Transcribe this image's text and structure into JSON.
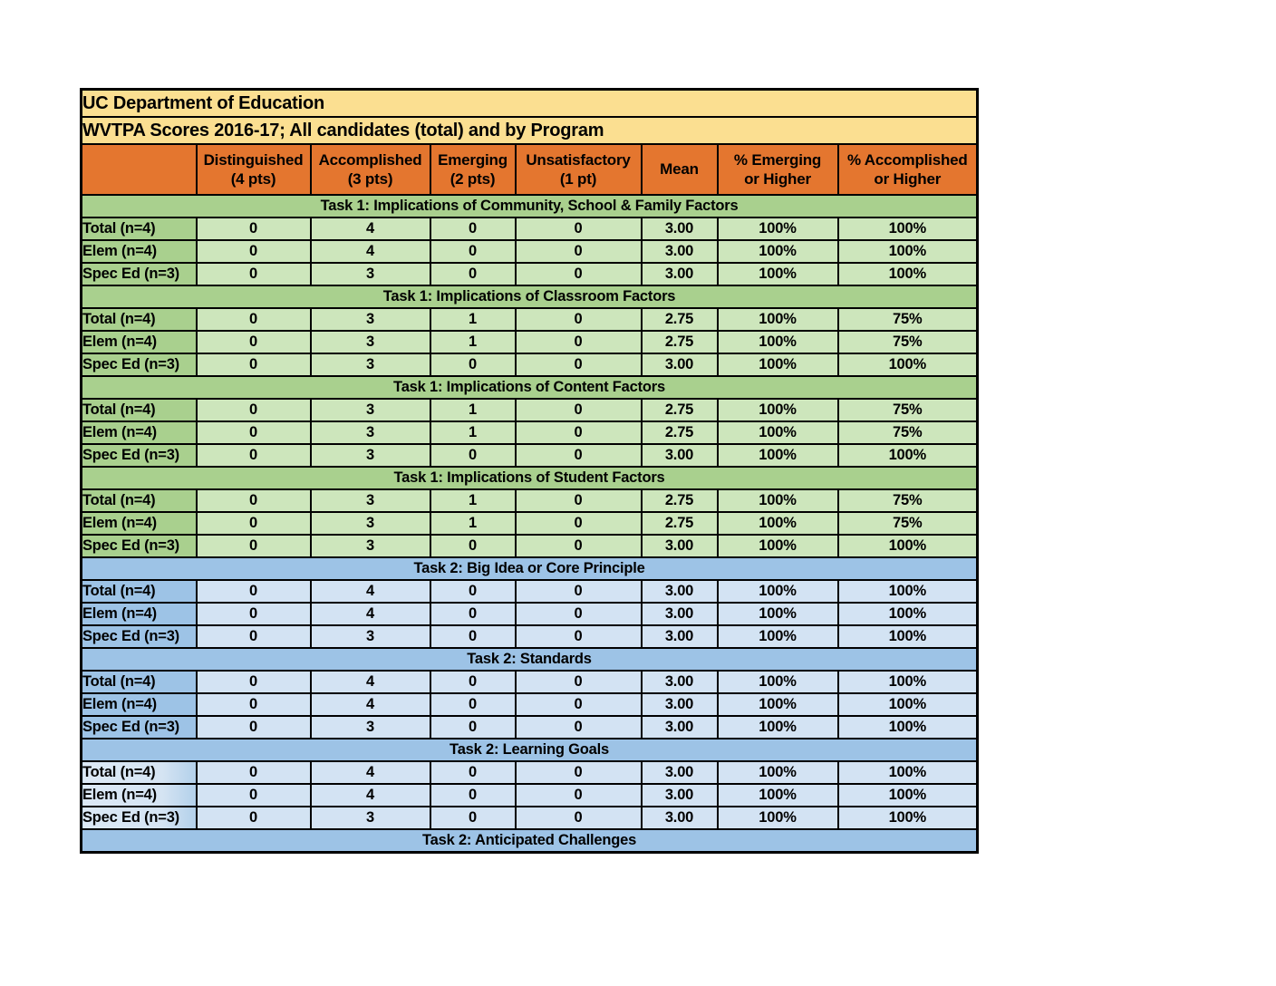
{
  "table": {
    "title_rows": [
      "UC Department of Education",
      "WVTPA Scores 2016-17; All candidates (total) and by Program"
    ],
    "columns": [
      {
        "label": ""
      },
      {
        "label": "Distinguished\n(4 pts)"
      },
      {
        "label": "Accomplished\n(3 pts)"
      },
      {
        "label": "Emerging\n(2 pts)"
      },
      {
        "label": "Unsatisfactory\n(1 pt)"
      },
      {
        "label": "Mean"
      },
      {
        "label": "% Emerging\nor Higher"
      },
      {
        "label": "% Accomplished\nor Higher"
      }
    ],
    "sections": [
      {
        "title": "Task 1: Implications of Community, School & Family Factors",
        "task": "task1",
        "rows": [
          {
            "label": "Total (n=4)",
            "values": [
              "0",
              "4",
              "0",
              "0",
              "3.00",
              "100%",
              "100%"
            ]
          },
          {
            "label": "Elem (n=4)",
            "values": [
              "0",
              "4",
              "0",
              "0",
              "3.00",
              "100%",
              "100%"
            ]
          },
          {
            "label": "Spec Ed (n=3)",
            "values": [
              "0",
              "3",
              "0",
              "0",
              "3.00",
              "100%",
              "100%"
            ]
          }
        ]
      },
      {
        "title": "Task 1: Implications of Classroom Factors",
        "task": "task1",
        "rows": [
          {
            "label": "Total (n=4)",
            "values": [
              "0",
              "3",
              "1",
              "0",
              "2.75",
              "100%",
              "75%"
            ]
          },
          {
            "label": "Elem (n=4)",
            "values": [
              "0",
              "3",
              "1",
              "0",
              "2.75",
              "100%",
              "75%"
            ]
          },
          {
            "label": "Spec Ed (n=3)",
            "values": [
              "0",
              "3",
              "0",
              "0",
              "3.00",
              "100%",
              "100%"
            ]
          }
        ]
      },
      {
        "title": "Task 1: Implications of Content Factors",
        "task": "task1",
        "rows": [
          {
            "label": "Total (n=4)",
            "values": [
              "0",
              "3",
              "1",
              "0",
              "2.75",
              "100%",
              "75%"
            ]
          },
          {
            "label": "Elem (n=4)",
            "values": [
              "0",
              "3",
              "1",
              "0",
              "2.75",
              "100%",
              "75%"
            ]
          },
          {
            "label": "Spec Ed (n=3)",
            "values": [
              "0",
              "3",
              "0",
              "0",
              "3.00",
              "100%",
              "100%"
            ]
          }
        ]
      },
      {
        "title": "Task 1: Implications of Student Factors",
        "task": "task1",
        "rows": [
          {
            "label": "Total (n=4)",
            "values": [
              "0",
              "3",
              "1",
              "0",
              "2.75",
              "100%",
              "75%"
            ]
          },
          {
            "label": "Elem (n=4)",
            "values": [
              "0",
              "3",
              "1",
              "0",
              "2.75",
              "100%",
              "75%"
            ]
          },
          {
            "label": "Spec Ed (n=3)",
            "values": [
              "0",
              "3",
              "0",
              "0",
              "3.00",
              "100%",
              "100%"
            ]
          }
        ]
      },
      {
        "title": "Task 2: Big Idea or Core Principle",
        "task": "task2",
        "rows": [
          {
            "label": "Total (n=4)",
            "values": [
              "0",
              "4",
              "0",
              "0",
              "3.00",
              "100%",
              "100%"
            ]
          },
          {
            "label": "Elem (n=4)",
            "values": [
              "0",
              "4",
              "0",
              "0",
              "3.00",
              "100%",
              "100%"
            ]
          },
          {
            "label": "Spec Ed (n=3)",
            "values": [
              "0",
              "3",
              "0",
              "0",
              "3.00",
              "100%",
              "100%"
            ]
          }
        ]
      },
      {
        "title": "Task 2: Standards",
        "task": "task2",
        "rows": [
          {
            "label": "Total (n=4)",
            "values": [
              "0",
              "4",
              "0",
              "0",
              "3.00",
              "100%",
              "100%"
            ]
          },
          {
            "label": "Elem (n=4)",
            "values": [
              "0",
              "4",
              "0",
              "0",
              "3.00",
              "100%",
              "100%"
            ]
          },
          {
            "label": "Spec Ed (n=3)",
            "values": [
              "0",
              "3",
              "0",
              "0",
              "3.00",
              "100%",
              "100%"
            ]
          }
        ]
      },
      {
        "title": "Task 2: Learning Goals",
        "task": "task2",
        "label_light": true,
        "rows": [
          {
            "label": "Total (n=4)",
            "values": [
              "0",
              "4",
              "0",
              "0",
              "3.00",
              "100%",
              "100%"
            ]
          },
          {
            "label": "Elem (n=4)",
            "values": [
              "0",
              "4",
              "0",
              "0",
              "3.00",
              "100%",
              "100%"
            ]
          },
          {
            "label": "Spec Ed (n=3)",
            "values": [
              "0",
              "3",
              "0",
              "0",
              "3.00",
              "100%",
              "100%"
            ]
          }
        ]
      },
      {
        "title": "Task 2: Anticipated Challenges",
        "task": "task2",
        "rows": []
      }
    ],
    "colors": {
      "title_bg": "#fbdf91",
      "header_bg": "#e4762f",
      "task1_header_bg": "#a9d08e",
      "task1_cell_bg": "#cde6bc",
      "task2_header_bg": "#9dc3e6",
      "task2_cell_bg": "#d3e3f3",
      "border": "#000000"
    }
  }
}
